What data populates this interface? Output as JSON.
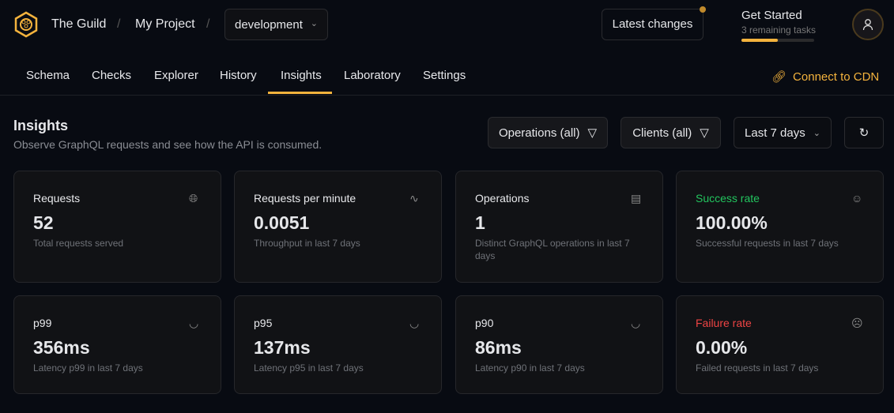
{
  "header": {
    "org": "The Guild",
    "project": "My Project",
    "target": "development",
    "latest_changes": "Latest changes",
    "get_started": "Get Started",
    "remaining": "3 remaining tasks",
    "progress": 0.5
  },
  "tabs": [
    "Schema",
    "Checks",
    "Explorer",
    "History",
    "Insights",
    "Laboratory",
    "Settings"
  ],
  "active_tab": "Insights",
  "connect_cdn": "Connect to CDN",
  "page": {
    "title": "Insights",
    "subtitle": "Observe GraphQL requests and see how the API is consumed."
  },
  "filters": {
    "operations": "Operations (all)",
    "clients": "Clients (all)",
    "period": "Last 7 days"
  },
  "cards": [
    {
      "title": "Requests",
      "value": "52",
      "desc": "Total requests served",
      "icon": "globe-icon"
    },
    {
      "title": "Requests per minute",
      "value": "0.0051",
      "desc": "Throughput in last 7 days",
      "icon": "activity-icon"
    },
    {
      "title": "Operations",
      "value": "1",
      "desc": "Distinct GraphQL operations in last 7 days",
      "icon": "book-icon"
    },
    {
      "title": "Success rate",
      "value": "100.00%",
      "desc": "Successful requests in last 7 days",
      "icon": "smile-icon",
      "color": "#22c55e"
    },
    {
      "title": "p99",
      "value": "356ms",
      "desc": "Latency p99 in last 7 days",
      "icon": "gauge-icon"
    },
    {
      "title": "p95",
      "value": "137ms",
      "desc": "Latency p95 in last 7 days",
      "icon": "gauge-icon"
    },
    {
      "title": "p90",
      "value": "86ms",
      "desc": "Latency p90 in last 7 days",
      "icon": "gauge-icon"
    },
    {
      "title": "Failure rate",
      "value": "0.00%",
      "desc": "Failed requests in last 7 days",
      "icon": "frown-icon",
      "color": "#ef4444"
    }
  ]
}
